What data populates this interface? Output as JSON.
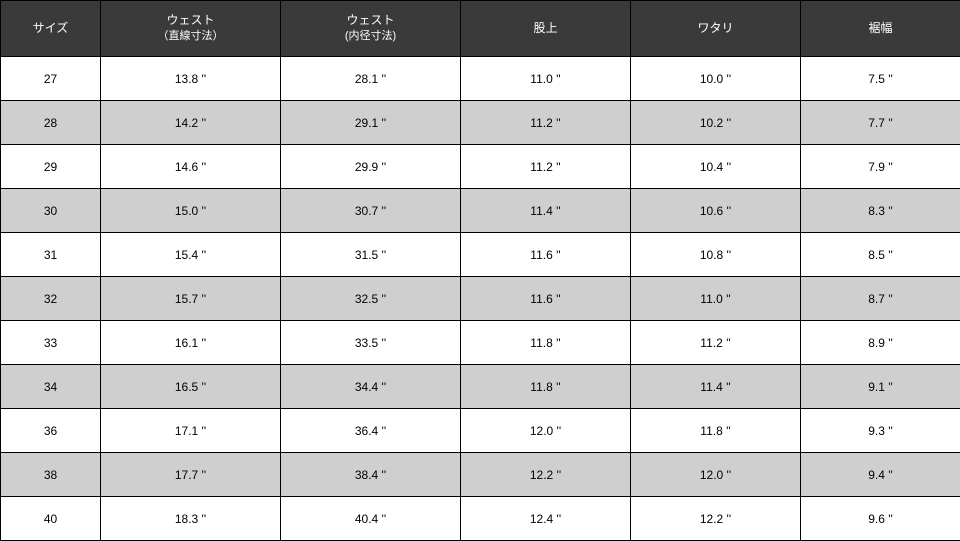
{
  "table": {
    "columns": [
      {
        "label": "サイズ",
        "sub": ""
      },
      {
        "label": "ウェスト",
        "sub": "（直線寸法）"
      },
      {
        "label": "ウェスト",
        "sub": "(内径寸法)"
      },
      {
        "label": "股上",
        "sub": ""
      },
      {
        "label": "ワタリ",
        "sub": ""
      },
      {
        "label": "裾幅",
        "sub": ""
      }
    ],
    "rows": [
      [
        "27",
        "13.8 ''",
        "28.1 ''",
        "11.0 ''",
        "10.0 ''",
        "7.5 ''"
      ],
      [
        "28",
        "14.2 ''",
        "29.1 ''",
        "11.2 ''",
        "10.2 ''",
        "7.7 ''"
      ],
      [
        "29",
        "14.6 ''",
        "29.9 ''",
        "11.2 ''",
        "10.4 ''",
        "7.9 ''"
      ],
      [
        "30",
        "15.0 ''",
        "30.7 ''",
        "11.4 ''",
        "10.6 ''",
        "8.3 ''"
      ],
      [
        "31",
        "15.4 ''",
        "31.5 ''",
        "11.6 ''",
        "10.8 ''",
        "8.5 ''"
      ],
      [
        "32",
        "15.7 ''",
        "32.5 ''",
        "11.6 ''",
        "11.0 ''",
        "8.7 ''"
      ],
      [
        "33",
        "16.1 ''",
        "33.5 ''",
        "11.8 ''",
        "11.2 ''",
        "8.9 ''"
      ],
      [
        "34",
        "16.5 ''",
        "34.4 ''",
        "11.8 ''",
        "11.4 ''",
        "9.1 ''"
      ],
      [
        "36",
        "17.1 ''",
        "36.4 ''",
        "12.0 ''",
        "11.8 ''",
        "9.3 ''"
      ],
      [
        "38",
        "17.7 ''",
        "38.4 ''",
        "12.2 ''",
        "12.0 ''",
        "9.4 ''"
      ],
      [
        "40",
        "18.3 ''",
        "40.4 ''",
        "12.4 ''",
        "12.2 ''",
        "9.6 ''"
      ]
    ],
    "header_bg": "#3a3a3a",
    "header_fg": "#ffffff",
    "row_odd_bg": "#ffffff",
    "row_even_bg": "#cfcfcf",
    "border_color": "#000000",
    "header_fontsize": 12,
    "cell_fontsize": 12
  }
}
